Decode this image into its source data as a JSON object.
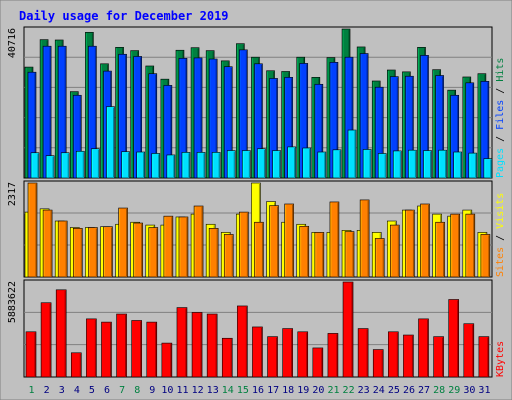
{
  "chart_data": [
    {
      "type": "bar",
      "title": "Daily usage for December 2019",
      "ymax_label": "40716",
      "axis_labels": [
        {
          "text": "Pages",
          "color": "#00e0ff"
        },
        {
          "text": "Files",
          "color": "#0040ff"
        },
        {
          "text": "Hits",
          "color": "#008040"
        }
      ],
      "series": [
        {
          "name": "Hits",
          "color": "#008040",
          "values": [
            30300,
            37800,
            37700,
            23600,
            39800,
            31200,
            35700,
            34800,
            30600,
            27000,
            34900,
            35600,
            34800,
            32000,
            36700,
            33000,
            29300,
            29100,
            33000,
            27500,
            32900,
            40700,
            35800,
            26500,
            29500,
            29000,
            35700,
            29600,
            24000,
            27600,
            28500
          ]
        },
        {
          "name": "Files",
          "color": "#0040ff",
          "values": [
            28900,
            36000,
            36000,
            22600,
            36000,
            29200,
            33800,
            33200,
            28500,
            25300,
            32700,
            32800,
            32500,
            30400,
            35000,
            31200,
            27200,
            27500,
            31300,
            25600,
            31600,
            33000,
            34000,
            24800,
            27700,
            27800,
            33500,
            28000,
            22600,
            26000,
            26400
          ]
        },
        {
          "name": "Pages",
          "color": "#00e0ff",
          "values": [
            6900,
            6100,
            6900,
            7300,
            8000,
            19500,
            7200,
            7100,
            6700,
            6300,
            7000,
            7000,
            7000,
            7500,
            7500,
            8000,
            7500,
            8500,
            8200,
            7100,
            7700,
            13100,
            7800,
            6700,
            7400,
            7600,
            7500,
            7600,
            7100,
            6800,
            5300
          ]
        }
      ]
    },
    {
      "type": "bar",
      "ymax_label": "2317",
      "axis_labels": [
        {
          "text": "Sites",
          "color": "#ff8000"
        },
        {
          "text": "Visits",
          "color": "#ffff00"
        }
      ],
      "series": [
        {
          "name": "Visits",
          "color": "#ffff00",
          "values": [
            1600,
            1680,
            1380,
            1220,
            1220,
            1240,
            1300,
            1350,
            1280,
            1280,
            1480,
            1550,
            1300,
            1100,
            1550,
            2317,
            1860,
            1350,
            1300,
            1100,
            1100,
            1150,
            1150,
            1100,
            1380,
            1650,
            1750,
            1550,
            1500,
            1650,
            1100
          ]
        },
        {
          "name": "Sites",
          "color": "#ff8000",
          "values": [
            2317,
            1650,
            1380,
            1200,
            1220,
            1240,
            1700,
            1330,
            1220,
            1500,
            1480,
            1750,
            1200,
            1050,
            1600,
            1350,
            1760,
            1800,
            1250,
            1100,
            1850,
            1120,
            1900,
            950,
            1280,
            1650,
            1800,
            1350,
            1550,
            1550,
            1050
          ]
        }
      ]
    },
    {
      "type": "bar",
      "ymax_label": "5883622",
      "axis_labels": [
        {
          "text": "KBytes",
          "color": "#ff0000"
        }
      ],
      "series": [
        {
          "name": "KBytes",
          "color": "#ff0000",
          "values": [
            2800000,
            4600000,
            5400000,
            1500000,
            3600000,
            3400000,
            3900000,
            3500000,
            3400000,
            2100000,
            4300000,
            4000000,
            3900000,
            2400000,
            4400000,
            3100000,
            2500000,
            3000000,
            2800000,
            1800000,
            2700000,
            5883622,
            3000000,
            1700000,
            2800000,
            2600000,
            3600000,
            2500000,
            4800000,
            3300000,
            2500000
          ]
        }
      ]
    }
  ],
  "days": [
    "1",
    "2",
    "3",
    "4",
    "5",
    "6",
    "7",
    "8",
    "9",
    "10",
    "11",
    "12",
    "13",
    "14",
    "15",
    "16",
    "17",
    "18",
    "19",
    "20",
    "21",
    "22",
    "23",
    "24",
    "25",
    "26",
    "27",
    "28",
    "29",
    "30",
    "31"
  ],
  "weekend_days": [
    1,
    7,
    8,
    14,
    15,
    21,
    22,
    28,
    29
  ],
  "weekend_color": "#008040",
  "weekday_color": "#000080"
}
